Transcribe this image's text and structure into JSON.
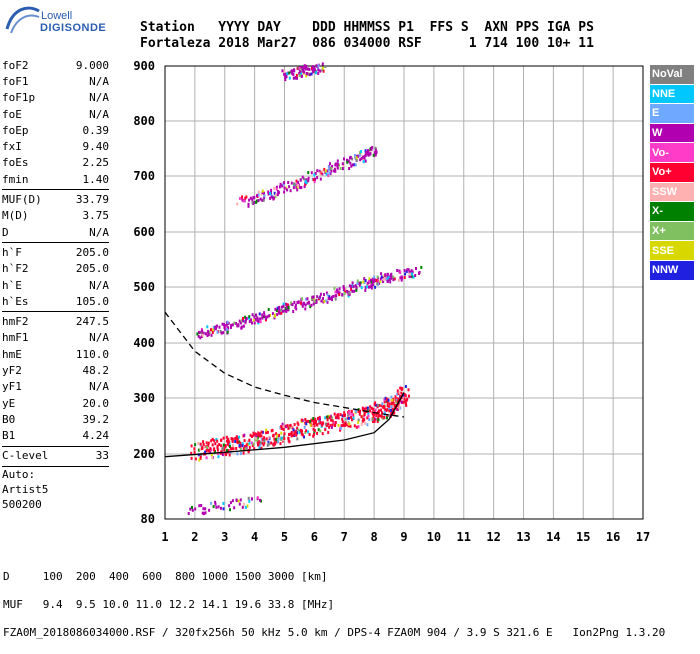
{
  "logo": {
    "line1": "Lowell",
    "line2": "DIGISONDE"
  },
  "header": {
    "line1": "Station   YYYY DAY    DDD HHMMSS P1  FFS S  AXN PPS IGA PS",
    "line2": "Fortaleza 2018 Mar27  086 034000 RSF      1 714 100 10+ 11"
  },
  "params": {
    "group1": [
      {
        "name": "foF2",
        "value": "9.000"
      },
      {
        "name": "foF1",
        "value": "N/A"
      },
      {
        "name": "foF1p",
        "value": "N/A"
      },
      {
        "name": "foE",
        "value": "N/A"
      },
      {
        "name": "foEp",
        "value": "0.39"
      },
      {
        "name": "fxI",
        "value": "9.40"
      },
      {
        "name": "foEs",
        "value": "2.25"
      },
      {
        "name": "fmin",
        "value": "1.40"
      }
    ],
    "group2": [
      {
        "name": "MUF(D)",
        "value": "33.79"
      },
      {
        "name": "M(D)",
        "value": "3.75"
      },
      {
        "name": "D",
        "value": "N/A"
      }
    ],
    "group3": [
      {
        "name": "h`F",
        "value": "205.0"
      },
      {
        "name": "h`F2",
        "value": "205.0"
      },
      {
        "name": "h`E",
        "value": "N/A"
      },
      {
        "name": "h`Es",
        "value": "105.0"
      }
    ],
    "group4": [
      {
        "name": "hmF2",
        "value": "247.5"
      },
      {
        "name": "hmF1",
        "value": "N/A"
      },
      {
        "name": "hmE",
        "value": "110.0"
      },
      {
        "name": "yF2",
        "value": "48.2"
      },
      {
        "name": "yF1",
        "value": "N/A"
      },
      {
        "name": "yE",
        "value": "20.0"
      },
      {
        "name": "B0",
        "value": "39.2"
      },
      {
        "name": "B1",
        "value": "4.24"
      }
    ],
    "group5": [
      {
        "name": "C-level",
        "value": "33"
      }
    ],
    "auto": [
      "Auto:",
      "Artist5",
      "500200"
    ]
  },
  "bottom": {
    "line1": "D     100  200  400  600  800 1000 1500 3000 [km]",
    "line2": "MUF   9.4  9.5 10.0 11.0 12.2 14.1 19.6 33.8 [MHz]",
    "line3": "FZA0M_2018086034000.RSF / 320fx256h 50 kHz 5.0 km / DPS-4 FZA0M 904 / 3.9 S 321.6 E   Ion2Png 1.3.20"
  },
  "legend": [
    {
      "label": "NoVal",
      "color": "#808080"
    },
    {
      "label": "NNE",
      "color": "#00c8ff"
    },
    {
      "label": "E",
      "color": "#6fa8ff"
    },
    {
      "label": "W",
      "color": "#b000b0"
    },
    {
      "label": "Vo-",
      "color": "#ff3cc8"
    },
    {
      "label": "Vo+",
      "color": "#ff0030"
    },
    {
      "label": "SSW",
      "color": "#ffb0b0"
    },
    {
      "label": "X-",
      "color": "#008000"
    },
    {
      "label": "X+",
      "color": "#80c060"
    },
    {
      "label": "SSE",
      "color": "#d8d800"
    },
    {
      "label": "NNW",
      "color": "#2020e0"
    }
  ],
  "chart_data": {
    "type": "scatter",
    "xlabel": "",
    "ylabel": "",
    "x_ticks": [
      1,
      2,
      3,
      4,
      5,
      6,
      7,
      8,
      9,
      10,
      11,
      12,
      13,
      14,
      15,
      16,
      17
    ],
    "y_ticks": [
      80,
      200,
      300,
      400,
      500,
      600,
      700,
      800,
      900
    ],
    "xlim": [
      1,
      17
    ],
    "ylim": [
      80,
      900
    ],
    "grid": true,
    "legend_position": "right",
    "traces": [
      {
        "name": "Es trace",
        "x": [
          1.9,
          4.1
        ],
        "y": [
          100,
          113
        ],
        "color": "#b000b0"
      },
      {
        "name": "F trace",
        "x": [
          2,
          3,
          4,
          5,
          6,
          7,
          8,
          8.6,
          9.0
        ],
        "y": [
          207,
          215,
          225,
          240,
          252,
          262,
          275,
          290,
          310
        ],
        "color": "#ff0030"
      },
      {
        "name": "F trace 2nd hop",
        "x": [
          2.1,
          3,
          4,
          5,
          6,
          7,
          7.8,
          8.5,
          9.4
        ],
        "y": [
          420,
          430,
          445,
          465,
          478,
          495,
          510,
          520,
          530
        ],
        "color": "#b000b0"
      },
      {
        "name": "F trace 3rd hop",
        "x": [
          3.5,
          4.5,
          5.5,
          6.5,
          7.5,
          8.0
        ],
        "y": [
          655,
          670,
          690,
          715,
          735,
          750
        ],
        "color": "#b000b0"
      },
      {
        "name": "F trace upper",
        "x": [
          5,
          5.6,
          6.2
        ],
        "y": [
          885,
          892,
          900
        ],
        "color": "#b000b0"
      },
      {
        "name": "O profile",
        "x": [
          1,
          3,
          5,
          7,
          8,
          8.5,
          9
        ],
        "y": [
          195,
          203,
          212,
          225,
          238,
          262,
          310
        ],
        "color": "#000000"
      },
      {
        "name": "MUF dashed",
        "x": [
          1,
          2,
          3,
          4,
          5,
          6,
          7,
          8,
          9
        ],
        "y": [
          455,
          385,
          345,
          320,
          305,
          292,
          283,
          274,
          266
        ],
        "color": "#000000"
      }
    ]
  }
}
